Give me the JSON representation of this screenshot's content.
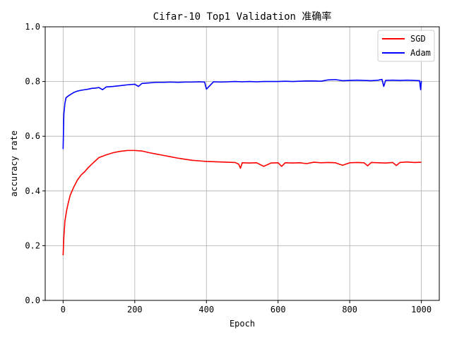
{
  "chart_data": {
    "type": "line",
    "title": "Cifar-10 Top1 Validation 准确率",
    "xlabel": "Epoch",
    "ylabel": "accuracy rate",
    "xlim": [
      -50,
      1050
    ],
    "ylim": [
      0.0,
      1.0
    ],
    "xticks": [
      0,
      200,
      400,
      600,
      800,
      1000
    ],
    "xtick_labels": [
      "0",
      "200",
      "400",
      "600",
      "800",
      "1000"
    ],
    "yticks": [
      0.0,
      0.2,
      0.4,
      0.6,
      0.8,
      1.0
    ],
    "ytick_labels": [
      "0.0",
      "0.2",
      "0.4",
      "0.6",
      "0.8",
      "1.0"
    ],
    "grid": true,
    "legend_position": "top-right",
    "series": [
      {
        "name": "SGD",
        "color": "#ff0000",
        "x": [
          0,
          2,
          5,
          10,
          15,
          20,
          30,
          40,
          50,
          60,
          70,
          80,
          90,
          100,
          120,
          140,
          160,
          180,
          200,
          220,
          240,
          260,
          280,
          300,
          320,
          340,
          360,
          380,
          400,
          420,
          440,
          460,
          480,
          490,
          495,
          500,
          520,
          540,
          560,
          580,
          600,
          610,
          620,
          640,
          660,
          680,
          700,
          720,
          740,
          760,
          780,
          800,
          820,
          840,
          850,
          860,
          880,
          900,
          920,
          930,
          940,
          960,
          980,
          1000
        ],
        "y": [
          0.165,
          0.23,
          0.29,
          0.33,
          0.36,
          0.385,
          0.415,
          0.44,
          0.458,
          0.47,
          0.485,
          0.498,
          0.51,
          0.522,
          0.532,
          0.54,
          0.545,
          0.548,
          0.548,
          0.546,
          0.54,
          0.535,
          0.53,
          0.525,
          0.52,
          0.516,
          0.512,
          0.51,
          0.508,
          0.507,
          0.506,
          0.505,
          0.504,
          0.498,
          0.483,
          0.503,
          0.502,
          0.503,
          0.49,
          0.502,
          0.503,
          0.49,
          0.503,
          0.502,
          0.503,
          0.5,
          0.505,
          0.503,
          0.504,
          0.503,
          0.494,
          0.503,
          0.504,
          0.503,
          0.492,
          0.504,
          0.503,
          0.502,
          0.504,
          0.493,
          0.504,
          0.506,
          0.504,
          0.505
        ]
      },
      {
        "name": "Adam",
        "color": "#0000ff",
        "x": [
          0,
          2,
          5,
          8,
          12,
          20,
          30,
          40,
          50,
          60,
          70,
          80,
          90,
          100,
          110,
          120,
          140,
          160,
          180,
          200,
          210,
          220,
          240,
          260,
          280,
          300,
          320,
          340,
          360,
          380,
          395,
          400,
          420,
          440,
          460,
          480,
          500,
          520,
          540,
          560,
          580,
          600,
          620,
          640,
          660,
          680,
          700,
          720,
          740,
          760,
          780,
          800,
          820,
          840,
          860,
          880,
          890,
          895,
          900,
          920,
          940,
          960,
          980,
          995,
          998,
          1000
        ],
        "y": [
          0.553,
          0.68,
          0.72,
          0.74,
          0.745,
          0.752,
          0.76,
          0.765,
          0.768,
          0.77,
          0.772,
          0.775,
          0.776,
          0.778,
          0.77,
          0.78,
          0.782,
          0.785,
          0.788,
          0.79,
          0.782,
          0.793,
          0.795,
          0.797,
          0.797,
          0.798,
          0.797,
          0.798,
          0.798,
          0.799,
          0.798,
          0.772,
          0.799,
          0.798,
          0.799,
          0.8,
          0.799,
          0.8,
          0.799,
          0.8,
          0.8,
          0.8,
          0.801,
          0.8,
          0.801,
          0.802,
          0.802,
          0.801,
          0.806,
          0.807,
          0.803,
          0.804,
          0.805,
          0.804,
          0.803,
          0.805,
          0.808,
          0.782,
          0.804,
          0.805,
          0.804,
          0.805,
          0.804,
          0.803,
          0.77,
          0.802
        ]
      }
    ]
  }
}
